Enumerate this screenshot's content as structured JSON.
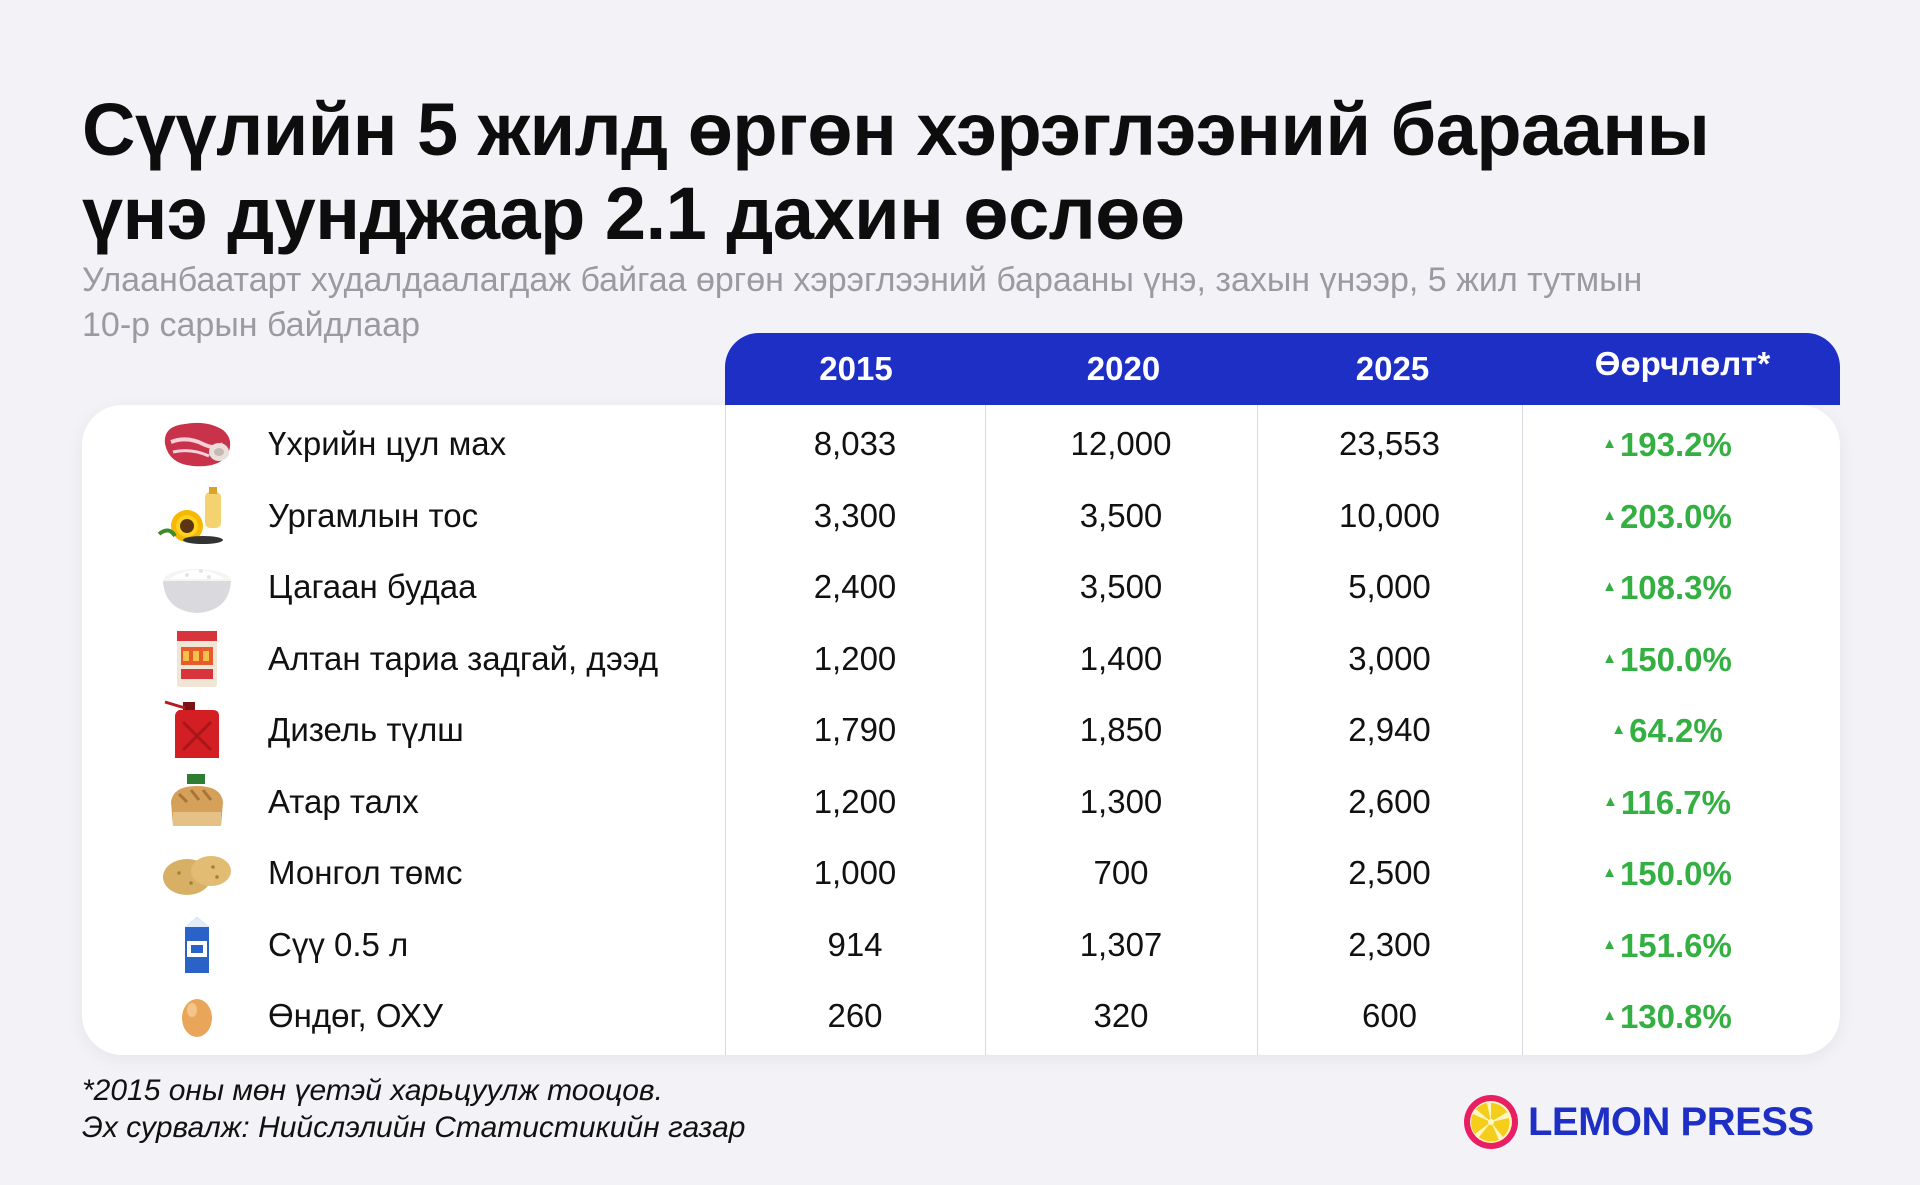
{
  "title_line1": "Сүүлийн 5 жилд өргөн хэрэглээний барааны",
  "title_line2": "үнэ дунджаар 2.1 дахин өслөө",
  "subtitle_line1": "Улаанбаатарт худалдаалагдаж байгаа өргөн хэрэглээний барааны үнэ, захын үнээр, 5 жил тутмын",
  "subtitle_line2": "10-р сарын байдлаар",
  "chart_data": {
    "type": "table",
    "columns": [
      "2015",
      "2020",
      "2025",
      "Өөрчлөлт*"
    ],
    "rows": [
      {
        "item": "Үхрийн цул мах",
        "icon": "beef-icon",
        "v2015": "8,033",
        "v2020": "12,000",
        "v2025": "23,553",
        "change": "193.2%"
      },
      {
        "item": "Ургамлын тос",
        "icon": "sunflower-oil-icon",
        "v2015": "3,300",
        "v2020": "3,500",
        "v2025": "10,000",
        "change": "203.0%"
      },
      {
        "item": "Цагаан будаа",
        "icon": "rice-bowl-icon",
        "v2015": "2,400",
        "v2020": "3,500",
        "v2025": "5,000",
        "change": "108.3%"
      },
      {
        "item": "Алтан тариа задгай, дээд",
        "icon": "flour-bag-icon",
        "v2015": "1,200",
        "v2020": "1,400",
        "v2025": "3,000",
        "change": "150.0%"
      },
      {
        "item": "Дизель түлш",
        "icon": "fuel-canister-icon",
        "v2015": "1,790",
        "v2020": "1,850",
        "v2025": "2,940",
        "change": "64.2%"
      },
      {
        "item": "Атар талх",
        "icon": "bread-icon",
        "v2015": "1,200",
        "v2020": "1,300",
        "v2025": "2,600",
        "change": "116.7%"
      },
      {
        "item": "Монгол төмс",
        "icon": "potato-icon",
        "v2015": "1,000",
        "v2020": "700",
        "v2025": "2,500",
        "change": "150.0%"
      },
      {
        "item": "Сүү 0.5 л",
        "icon": "milk-carton-icon",
        "v2015": "914",
        "v2020": "1,307",
        "v2025": "2,300",
        "change": "151.6%"
      },
      {
        "item": "Өндөг, ОХУ",
        "icon": "egg-icon",
        "v2015": "260",
        "v2020": "320",
        "v2025": "600",
        "change": "130.8%"
      }
    ]
  },
  "footnote_line1": "*2015 оны мөн үетэй харьцуулж тооцов.",
  "footnote_line2": "Эх сурвалж: Нийслэлийн Статистикийн газар",
  "logo_text": "LEMON PRESS",
  "colors": {
    "header": "#1d2fc4",
    "positive": "#34b042",
    "logo": "#1d2fc4",
    "logo_circle": "#e91e63"
  }
}
